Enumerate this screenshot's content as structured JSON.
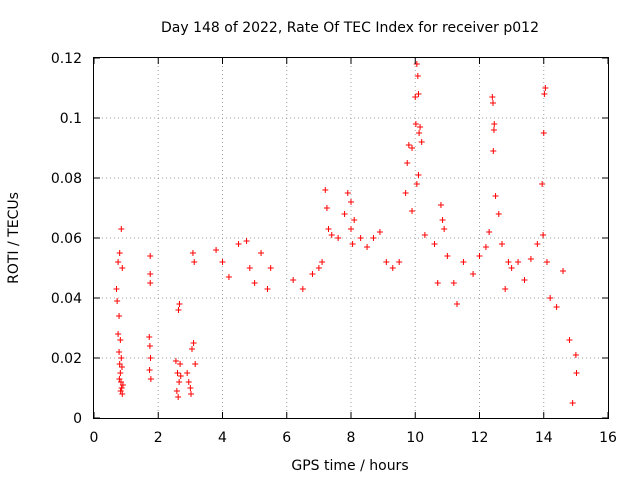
{
  "chart_data": {
    "type": "scatter",
    "title": "Day 148 of 2022, Rate Of TEC Index for receiver p012",
    "xlabel": "GPS time / hours",
    "ylabel": "ROTI / TECUs",
    "xlim": [
      0,
      16
    ],
    "ylim": [
      0,
      0.12
    ],
    "x_ticks": [
      0,
      2,
      4,
      6,
      8,
      10,
      12,
      14,
      16
    ],
    "y_ticks": [
      0,
      0.02,
      0.04,
      0.06,
      0.08,
      0.1,
      0.12
    ],
    "x_tick_labels": [
      "0",
      "2",
      "4",
      "6",
      "8",
      "10",
      "12",
      "14",
      "16"
    ],
    "y_tick_labels": [
      "0",
      "0.02",
      "0.04",
      "0.06",
      "0.08",
      "0.1",
      "0.12"
    ],
    "grid": true,
    "marker": "+",
    "color": "#ff0000",
    "series": [
      {
        "name": "ROTI",
        "points": [
          [
            0.7,
            0.043
          ],
          [
            0.72,
            0.039
          ],
          [
            0.75,
            0.028
          ],
          [
            0.78,
            0.022
          ],
          [
            0.8,
            0.018
          ],
          [
            0.82,
            0.015
          ],
          [
            0.84,
            0.012
          ],
          [
            0.86,
            0.01
          ],
          [
            0.88,
            0.008
          ],
          [
            0.9,
            0.011
          ],
          [
            0.75,
            0.052
          ],
          [
            0.8,
            0.055
          ],
          [
            0.85,
            0.063
          ],
          [
            0.88,
            0.05
          ],
          [
            0.78,
            0.034
          ],
          [
            0.82,
            0.026
          ],
          [
            0.85,
            0.02
          ],
          [
            0.87,
            0.017
          ],
          [
            0.79,
            0.013
          ],
          [
            0.83,
            0.009
          ],
          [
            1.75,
            0.054
          ],
          [
            1.75,
            0.048
          ],
          [
            1.75,
            0.045
          ],
          [
            1.72,
            0.027
          ],
          [
            1.74,
            0.024
          ],
          [
            1.76,
            0.02
          ],
          [
            1.73,
            0.016
          ],
          [
            1.77,
            0.013
          ],
          [
            2.55,
            0.019
          ],
          [
            2.6,
            0.015
          ],
          [
            2.65,
            0.012
          ],
          [
            2.58,
            0.009
          ],
          [
            2.62,
            0.007
          ],
          [
            2.68,
            0.018
          ],
          [
            2.66,
            0.038
          ],
          [
            2.63,
            0.036
          ],
          [
            2.7,
            0.014
          ],
          [
            2.9,
            0.015
          ],
          [
            2.95,
            0.012
          ],
          [
            3.0,
            0.01
          ],
          [
            3.05,
            0.023
          ],
          [
            3.1,
            0.025
          ],
          [
            3.15,
            0.018
          ],
          [
            3.08,
            0.055
          ],
          [
            3.12,
            0.052
          ],
          [
            3.02,
            0.008
          ],
          [
            3.8,
            0.056
          ],
          [
            4.0,
            0.052
          ],
          [
            4.2,
            0.047
          ],
          [
            4.5,
            0.058
          ],
          [
            4.75,
            0.059
          ],
          [
            4.85,
            0.05
          ],
          [
            5.0,
            0.045
          ],
          [
            5.2,
            0.055
          ],
          [
            5.4,
            0.043
          ],
          [
            5.5,
            0.05
          ],
          [
            6.2,
            0.046
          ],
          [
            6.5,
            0.043
          ],
          [
            6.8,
            0.048
          ],
          [
            7.0,
            0.05
          ],
          [
            7.1,
            0.052
          ],
          [
            7.2,
            0.076
          ],
          [
            7.3,
            0.063
          ],
          [
            7.4,
            0.061
          ],
          [
            7.6,
            0.06
          ],
          [
            7.8,
            0.068
          ],
          [
            7.9,
            0.075
          ],
          [
            8.0,
            0.072
          ],
          [
            8.1,
            0.066
          ],
          [
            8.3,
            0.06
          ],
          [
            8.5,
            0.057
          ],
          [
            8.7,
            0.06
          ],
          [
            8.9,
            0.062
          ],
          [
            9.1,
            0.052
          ],
          [
            9.3,
            0.05
          ],
          [
            9.5,
            0.052
          ],
          [
            9.7,
            0.075
          ],
          [
            9.75,
            0.085
          ],
          [
            9.8,
            0.091
          ],
          [
            9.9,
            0.09
          ],
          [
            10.0,
            0.107
          ],
          [
            10.05,
            0.118
          ],
          [
            10.08,
            0.114
          ],
          [
            10.1,
            0.108
          ],
          [
            10.15,
            0.097
          ],
          [
            10.2,
            0.092
          ],
          [
            10.1,
            0.081
          ],
          [
            10.05,
            0.078
          ],
          [
            10.3,
            0.061
          ],
          [
            10.6,
            0.058
          ],
          [
            10.8,
            0.071
          ],
          [
            10.85,
            0.066
          ],
          [
            10.9,
            0.063
          ],
          [
            11.0,
            0.054
          ],
          [
            11.2,
            0.045
          ],
          [
            11.5,
            0.052
          ],
          [
            11.8,
            0.048
          ],
          [
            12.0,
            0.054
          ],
          [
            12.2,
            0.057
          ],
          [
            12.3,
            0.062
          ],
          [
            12.4,
            0.107
          ],
          [
            12.42,
            0.105
          ],
          [
            12.45,
            0.096
          ],
          [
            12.43,
            0.089
          ],
          [
            12.5,
            0.074
          ],
          [
            12.6,
            0.068
          ],
          [
            12.7,
            0.058
          ],
          [
            12.9,
            0.052
          ],
          [
            13.0,
            0.05
          ],
          [
            13.2,
            0.052
          ],
          [
            13.4,
            0.046
          ],
          [
            13.6,
            0.053
          ],
          [
            13.8,
            0.058
          ],
          [
            13.95,
            0.078
          ],
          [
            14.0,
            0.095
          ],
          [
            14.02,
            0.108
          ],
          [
            14.05,
            0.11
          ],
          [
            13.98,
            0.061
          ],
          [
            14.1,
            0.052
          ],
          [
            14.2,
            0.04
          ],
          [
            14.4,
            0.037
          ],
          [
            14.6,
            0.049
          ],
          [
            14.8,
            0.026
          ],
          [
            15.0,
            0.021
          ],
          [
            15.02,
            0.015
          ],
          [
            14.9,
            0.005
          ],
          [
            8.0,
            0.063
          ],
          [
            8.05,
            0.058
          ],
          [
            9.9,
            0.069
          ],
          [
            10.02,
            0.098
          ],
          [
            10.12,
            0.095
          ],
          [
            12.46,
            0.098
          ],
          [
            7.25,
            0.07
          ],
          [
            10.7,
            0.045
          ],
          [
            11.3,
            0.038
          ],
          [
            12.8,
            0.043
          ]
        ]
      }
    ]
  }
}
